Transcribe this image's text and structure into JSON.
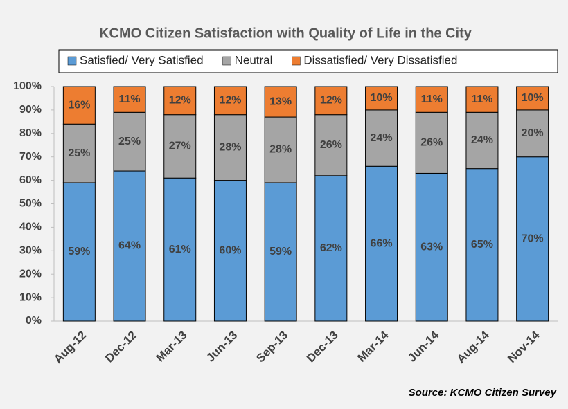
{
  "chart_data": {
    "type": "stacked_bar",
    "title": "KCMO Citizen Satisfaction with Quality of Life in the City",
    "source": "Source: KCMO Citizen Survey",
    "categories": [
      "Aug-12",
      "Dec-12",
      "Mar-13",
      "Jun-13",
      "Sep-13",
      "Dec-13",
      "Mar-14",
      "Jun-14",
      "Aug-14",
      "Nov-14"
    ],
    "series": [
      {
        "name": "Satisfied/ Very Satisfied",
        "color": "#5b9bd5",
        "values": [
          59,
          64,
          61,
          60,
          59,
          62,
          66,
          63,
          65,
          70
        ],
        "value_labels": [
          "59%",
          "64%",
          "61%",
          "60%",
          "59%",
          "62%",
          "66%",
          "63%",
          "65%",
          "70%"
        ]
      },
      {
        "name": "Neutral",
        "color": "#a5a5a5",
        "values": [
          25,
          25,
          27,
          28,
          28,
          26,
          24,
          26,
          24,
          20
        ],
        "value_labels": [
          "25%",
          "25%",
          "27%",
          "28%",
          "28%",
          "26%",
          "24%",
          "26%",
          "24%",
          "20%"
        ]
      },
      {
        "name": "Dissatisfied/ Very Dissatisfied",
        "color": "#ed7d31",
        "values": [
          16,
          11,
          12,
          12,
          13,
          12,
          10,
          11,
          11,
          10
        ],
        "value_labels": [
          "16%",
          "11%",
          "12%",
          "12%",
          "13%",
          "12%",
          "10%",
          "11%",
          "11%",
          "10%"
        ]
      }
    ],
    "ylim": [
      0,
      100
    ],
    "yticks": [
      {
        "value": 0,
        "label": "0%"
      },
      {
        "value": 10,
        "label": "10%"
      },
      {
        "value": 20,
        "label": "20%"
      },
      {
        "value": 30,
        "label": "30%"
      },
      {
        "value": 40,
        "label": "40%"
      },
      {
        "value": 50,
        "label": "50%"
      },
      {
        "value": 60,
        "label": "60%"
      },
      {
        "value": 70,
        "label": "70%"
      },
      {
        "value": 80,
        "label": "80%"
      },
      {
        "value": 90,
        "label": "90%"
      },
      {
        "value": 100,
        "label": "100%"
      }
    ],
    "grid": false,
    "legend": "top"
  }
}
